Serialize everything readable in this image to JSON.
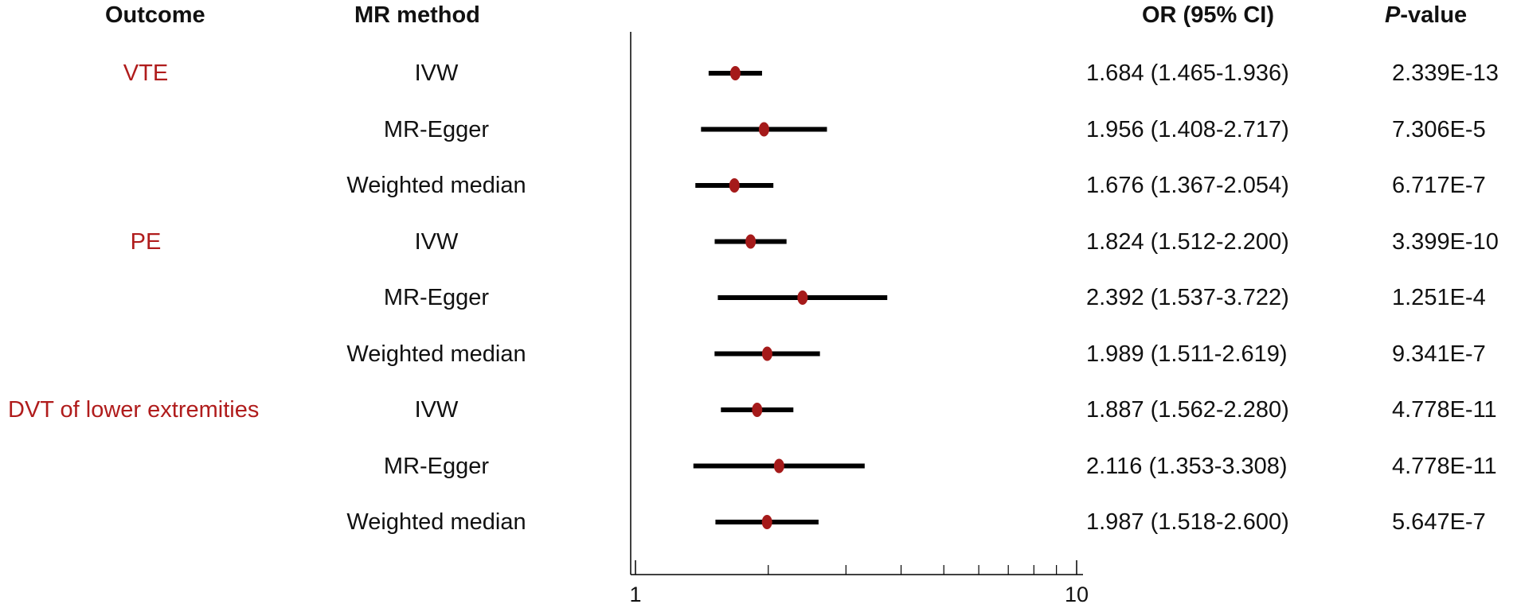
{
  "headers": {
    "outcome": "Outcome",
    "method": "MR method",
    "or_ci": "OR (95% CI)",
    "p_italic": "P",
    "p_rest": "-value"
  },
  "colors": {
    "outcome_text": "#b01c1c",
    "point": "#a51a1a",
    "ci_line": "#000000",
    "axis": "#000000"
  },
  "chart_data": {
    "type": "forest",
    "x_scale": "log",
    "xlim": [
      1,
      10
    ],
    "x_tick_labels": [
      "1",
      "10"
    ],
    "minor_ticks": [
      2,
      3,
      4,
      5,
      6,
      7,
      8,
      9
    ],
    "rows": [
      {
        "outcome": "VTE",
        "method": "IVW",
        "or": 1.684,
        "lower": 1.465,
        "upper": 1.936,
        "or_ci_text": "1.684 (1.465-1.936)",
        "p_value": "2.339E-13"
      },
      {
        "outcome": "",
        "method": "MR-Egger",
        "or": 1.956,
        "lower": 1.408,
        "upper": 2.717,
        "or_ci_text": "1.956 (1.408-2.717)",
        "p_value": "7.306E-5"
      },
      {
        "outcome": "",
        "method": "Weighted median",
        "or": 1.676,
        "lower": 1.367,
        "upper": 2.054,
        "or_ci_text": "1.676 (1.367-2.054)",
        "p_value": "6.717E-7"
      },
      {
        "outcome": "PE",
        "method": "IVW",
        "or": 1.824,
        "lower": 1.512,
        "upper": 2.2,
        "or_ci_text": "1.824 (1.512-2.200)",
        "p_value": "3.399E-10"
      },
      {
        "outcome": "",
        "method": "MR-Egger",
        "or": 2.392,
        "lower": 1.537,
        "upper": 3.722,
        "or_ci_text": "2.392 (1.537-3.722)",
        "p_value": "1.251E-4"
      },
      {
        "outcome": "",
        "method": "Weighted median",
        "or": 1.989,
        "lower": 1.511,
        "upper": 2.619,
        "or_ci_text": "1.989 (1.511-2.619)",
        "p_value": "9.341E-7"
      },
      {
        "outcome": "DVT of lower extremities",
        "method": "IVW",
        "or": 1.887,
        "lower": 1.562,
        "upper": 2.28,
        "or_ci_text": "1.887 (1.562-2.280)",
        "p_value": "4.778E-11"
      },
      {
        "outcome": "",
        "method": "MR-Egger",
        "or": 2.116,
        "lower": 1.353,
        "upper": 3.308,
        "or_ci_text": "2.116 (1.353-3.308)",
        "p_value": "4.778E-11"
      },
      {
        "outcome": "",
        "method": "Weighted median",
        "or": 1.987,
        "lower": 1.518,
        "upper": 2.6,
        "or_ci_text": "1.987 (1.518-2.600)",
        "p_value": "5.647E-7"
      }
    ]
  }
}
